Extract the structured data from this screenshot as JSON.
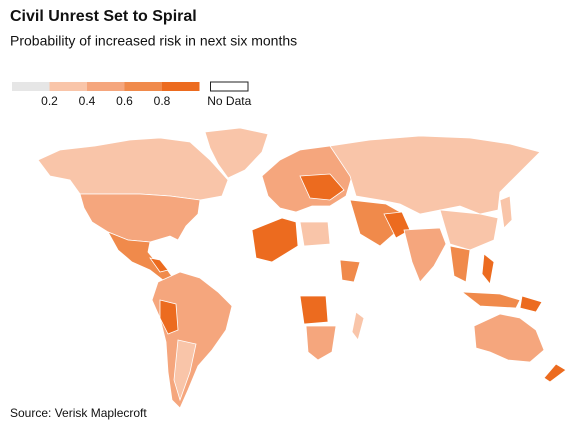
{
  "header": {
    "title": "Civil Unrest Set to Spiral",
    "subtitle": "Probability of increased risk in next six months"
  },
  "legend": {
    "colors": [
      "#e6e6e6",
      "#f9c5a9",
      "#f5a67d",
      "#f08a4b",
      "#ec6b1f"
    ],
    "ticks": [
      0.2,
      0.4,
      0.6,
      0.8
    ],
    "no_data": {
      "label": "No Data",
      "color": "#ffffff"
    }
  },
  "source": "Source: Verisk Maplecroft"
}
